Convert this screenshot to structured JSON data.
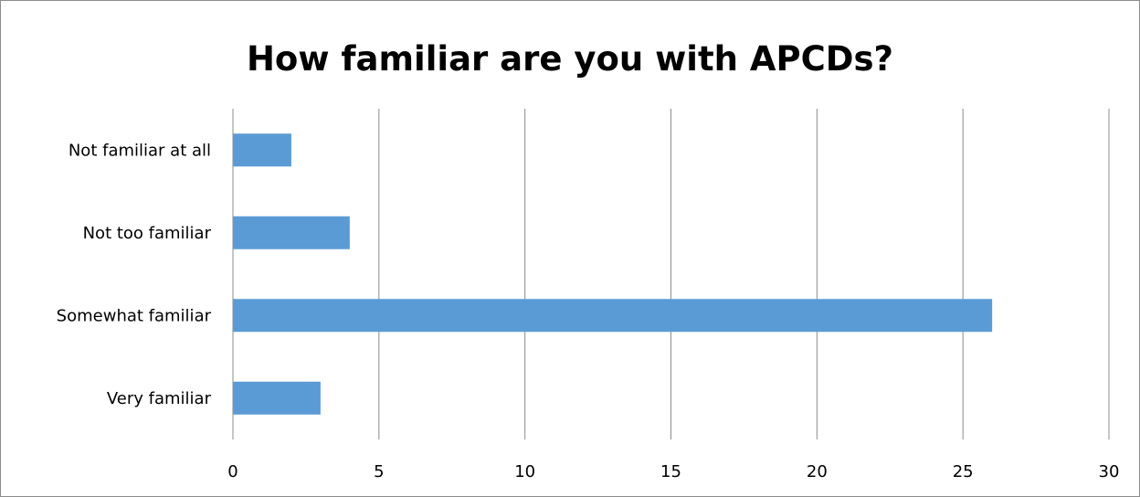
{
  "chart_data": {
    "type": "bar",
    "orientation": "horizontal",
    "title": "How familiar are you with APCDs?",
    "categories": [
      "Not familiar at all",
      "Not too familiar",
      "Somewhat familiar",
      "Very familiar"
    ],
    "values": [
      2,
      4,
      26,
      3
    ],
    "xlabel": "",
    "ylabel": "",
    "xlim": [
      0,
      30
    ],
    "x_ticks": [
      "0",
      "5",
      "10",
      "15",
      "20",
      "25",
      "30"
    ],
    "grid": "vertical",
    "bar_color": "#5B9BD5",
    "grid_color": "#8C8C8C"
  }
}
